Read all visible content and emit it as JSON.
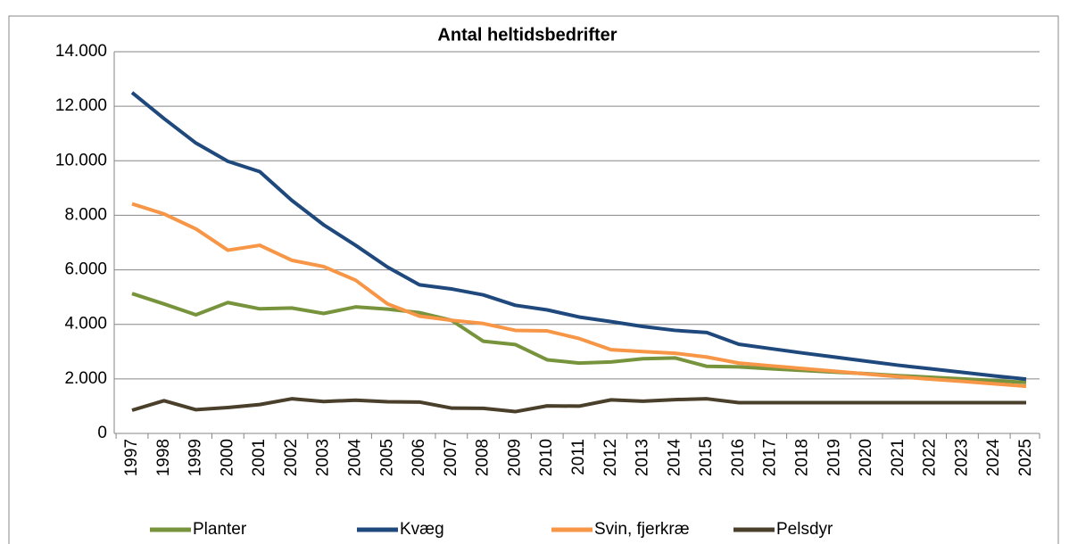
{
  "chart_data": {
    "type": "line",
    "title": "Antal heltidsbedrifter",
    "categories": [
      "1997",
      "1998",
      "1999",
      "2000",
      "2001",
      "2002",
      "2003",
      "2004",
      "2005",
      "2006",
      "2007",
      "2008",
      "2009",
      "2010",
      "2011",
      "2012",
      "2013",
      "2014",
      "2015",
      "2016",
      "2017",
      "2018",
      "2019",
      "2020",
      "2021",
      "2022",
      "2023",
      "2024",
      "2025"
    ],
    "series": [
      {
        "name": "Planter",
        "color": "#77933c",
        "values": [
          5130,
          4750,
          4350,
          4800,
          4570,
          4600,
          4400,
          4640,
          4560,
          4430,
          4150,
          3380,
          3260,
          2700,
          2580,
          2620,
          2740,
          2770,
          2460,
          2440,
          2370,
          2310,
          2250,
          2190,
          2120,
          2060,
          2000,
          1940,
          1870
        ]
      },
      {
        "name": "Kvæg",
        "color": "#1f497d",
        "values": [
          12500,
          11550,
          10650,
          9980,
          9600,
          8550,
          7650,
          6900,
          6100,
          5450,
          5300,
          5080,
          4700,
          4530,
          4270,
          4100,
          3920,
          3780,
          3700,
          3270,
          3110,
          2950,
          2800,
          2650,
          2500,
          2370,
          2240,
          2110,
          1990
        ]
      },
      {
        "name": "Svin, fjerkræ",
        "color": "#f79646",
        "values": [
          8420,
          8050,
          7500,
          6720,
          6900,
          6350,
          6120,
          5620,
          4750,
          4300,
          4150,
          4030,
          3780,
          3760,
          3480,
          3070,
          3000,
          2940,
          2800,
          2580,
          2480,
          2380,
          2280,
          2180,
          2080,
          1990,
          1910,
          1820,
          1730
        ]
      },
      {
        "name": "Pelsdyr",
        "color": "#4a3f2a",
        "values": [
          850,
          1200,
          870,
          950,
          1060,
          1270,
          1170,
          1220,
          1160,
          1150,
          930,
          920,
          800,
          1010,
          1000,
          1230,
          1180,
          1240,
          1270,
          1130,
          1130,
          1130,
          1130,
          1130,
          1130,
          1130,
          1130,
          1130,
          1130
        ]
      }
    ],
    "ylim": [
      0,
      14000
    ],
    "yticks": [
      0,
      {
        "value": 2000,
        "label": "2.000"
      },
      {
        "value": 4000,
        "label": "4.000"
      },
      {
        "value": 6000,
        "label": "6.000"
      },
      {
        "value": 8000,
        "label": "8.000"
      },
      {
        "value": 10000,
        "label": "10.000"
      },
      {
        "value": 12000,
        "label": "12.000"
      },
      {
        "value": 14000,
        "label": "14.000"
      }
    ],
    "grid": true,
    "legend": "bottom"
  }
}
